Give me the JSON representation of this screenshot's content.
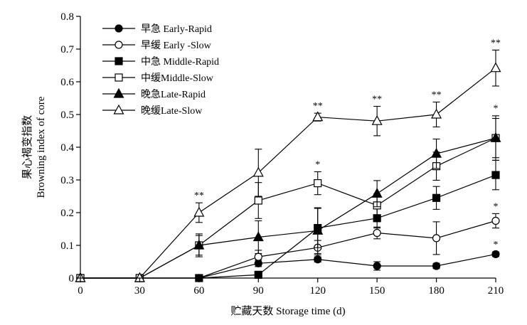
{
  "chart_data": {
    "type": "line",
    "xlabel": "贮藏天数 Storage time (d)",
    "ylabel_cn": "果心褐变指数",
    "ylabel_en": "Browning index of core",
    "x": [
      0,
      30,
      60,
      90,
      120,
      150,
      180,
      210
    ],
    "x_ticks": [
      "0",
      "30",
      "60",
      "90",
      "120",
      "150",
      "180",
      "210"
    ],
    "y_ticks": [
      "0",
      "0.1",
      "0.2",
      "0.3",
      "0.4",
      "0.5",
      "0.6",
      "0.7",
      "0.8"
    ],
    "xlim": [
      0,
      210
    ],
    "ylim": [
      0,
      0.8
    ],
    "grid": false,
    "legend_position": "top-left",
    "series": [
      {
        "name": "早急 Early-Rapid",
        "marker": "circle",
        "filled": true,
        "values": [
          0,
          0,
          0,
          0.045,
          0.057,
          0.037,
          0.037,
          0.073
        ],
        "errors": [
          0,
          0,
          0,
          0.01,
          0.008,
          0.013,
          0.008,
          0.007
        ]
      },
      {
        "name": "早缓 Early -Slow",
        "marker": "circle",
        "filled": false,
        "values": [
          0,
          0,
          0,
          0.065,
          0.093,
          0.138,
          0.122,
          0.175
        ],
        "errors": [
          0,
          0,
          0,
          0.02,
          0.022,
          0.018,
          0.05,
          0.022
        ]
      },
      {
        "name": "中急 Middle-Rapid",
        "marker": "square",
        "filled": true,
        "values": [
          0,
          0,
          0,
          0.01,
          0.153,
          0.183,
          0.245,
          0.315
        ],
        "errors": [
          0,
          0,
          0,
          0.005,
          0.06,
          0.03,
          0.035,
          0.045
        ]
      },
      {
        "name": "中缓Middle-Slow",
        "marker": "square",
        "filled": false,
        "values": [
          0,
          0,
          0.1,
          0.237,
          0.29,
          0.222,
          0.342,
          0.428
        ],
        "errors": [
          0,
          0,
          0.03,
          0.055,
          0.035,
          0.035,
          0.043,
          0.068
        ]
      },
      {
        "name": "晚急Late-Rapid",
        "marker": "triangle",
        "filled": true,
        "values": [
          0,
          0,
          0.1,
          0.125,
          0.145,
          0.258,
          0.38,
          0.428
        ],
        "errors": [
          0,
          0,
          0.035,
          0.05,
          0.07,
          0.04,
          0.045,
          0.06
        ]
      },
      {
        "name": "晚缓Late-Slow",
        "marker": "triangle",
        "filled": false,
        "values": [
          0,
          0,
          0.2,
          0.322,
          0.492,
          0.48,
          0.5,
          0.642
        ],
        "errors": [
          0,
          0,
          0.03,
          0.072,
          0.012,
          0.045,
          0.038,
          0.055
        ]
      }
    ],
    "significance": [
      {
        "x": 60,
        "label": "**"
      },
      {
        "x": 120,
        "label": "**"
      },
      {
        "x": 120,
        "label": "*"
      },
      {
        "x": 150,
        "label": "**"
      },
      {
        "x": 180,
        "label": "**"
      },
      {
        "x": 210,
        "label": "**"
      },
      {
        "x": 210,
        "label": "*"
      },
      {
        "x": 210,
        "label": "*"
      },
      {
        "x": 210,
        "label": "*"
      }
    ]
  }
}
